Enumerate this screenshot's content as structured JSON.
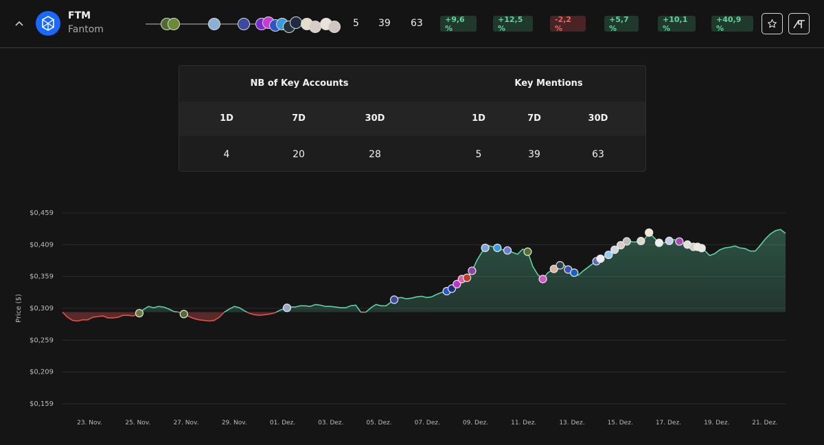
{
  "token": {
    "ticker": "FTM",
    "name": "Fantom",
    "logo_icon": "fantom-logo-icon",
    "logo_color": "#1969ff"
  },
  "header": {
    "collapse_icon": "chevron-up-icon",
    "mentions_1d": "5",
    "mentions_7d": "39",
    "mentions_30d": "63",
    "changes": [
      {
        "label": "+9,6 %",
        "type": "positive"
      },
      {
        "label": "+12,5 %",
        "type": "positive"
      },
      {
        "label": "-2,2 %",
        "type": "negative"
      },
      {
        "label": "+5,7 %",
        "type": "positive"
      },
      {
        "label": "+10,1 %",
        "type": "positive"
      },
      {
        "label": "+40,9 %",
        "type": "positive"
      }
    ],
    "favorite_icon": "star-icon",
    "brand_icon": "brand-logo-icon",
    "accent_green": "#62d59c",
    "accent_red": "#f0625e"
  },
  "stats": {
    "accounts_title": "NB of Key Accounts",
    "mentions_title": "Key Mentions",
    "periods": [
      "1D",
      "7D",
      "30D"
    ],
    "accounts_values": [
      "4",
      "20",
      "28"
    ],
    "mentions_values": [
      "5",
      "39",
      "63"
    ]
  },
  "chart_data": {
    "type": "line",
    "ylabel": "Price ($)",
    "yticks": [
      "$0,459",
      "$0,409",
      "$0,359",
      "$0,309",
      "$0,259",
      "$0,209",
      "$0,159"
    ],
    "ylim": [
      0.159,
      0.459
    ],
    "baseline": 0.303,
    "xticks": [
      "23. Nov.",
      "25. Nov.",
      "27. Nov.",
      "29. Nov.",
      "01. Dez.",
      "03. Dez.",
      "05. Dez.",
      "07. Dez.",
      "09. Dez.",
      "11. Dez.",
      "13. Dez.",
      "15. Dez.",
      "17. Dez.",
      "19. Dez.",
      "21. Dez."
    ],
    "x_start": "2023-11-22",
    "x_step_days": 0.25,
    "values": [
      0.303,
      0.295,
      0.29,
      0.289,
      0.291,
      0.291,
      0.295,
      0.296,
      0.297,
      0.294,
      0.294,
      0.295,
      0.298,
      0.298,
      0.297,
      0.3,
      0.307,
      0.312,
      0.31,
      0.312,
      0.311,
      0.308,
      0.304,
      0.303,
      0.3,
      0.296,
      0.293,
      0.291,
      0.29,
      0.289,
      0.29,
      0.295,
      0.303,
      0.308,
      0.312,
      0.31,
      0.305,
      0.301,
      0.299,
      0.298,
      0.299,
      0.3,
      0.302,
      0.306,
      0.309,
      0.311,
      0.311,
      0.313,
      0.313,
      0.312,
      0.315,
      0.314,
      0.312,
      0.312,
      0.311,
      0.31,
      0.31,
      0.313,
      0.314,
      0.303,
      0.303,
      0.31,
      0.315,
      0.313,
      0.313,
      0.319,
      0.325,
      0.326,
      0.324,
      0.325,
      0.327,
      0.328,
      0.326,
      0.327,
      0.331,
      0.334,
      0.336,
      0.34,
      0.347,
      0.355,
      0.357,
      0.368,
      0.385,
      0.398,
      0.408,
      0.406,
      0.404,
      0.401,
      0.4,
      0.397,
      0.394,
      0.402,
      0.398,
      0.375,
      0.362,
      0.355,
      0.365,
      0.37,
      0.375,
      0.379,
      0.37,
      0.366,
      0.361,
      0.368,
      0.374,
      0.38,
      0.385,
      0.39,
      0.393,
      0.4,
      0.405,
      0.413,
      0.415,
      0.413,
      0.414,
      0.416,
      0.428,
      0.42,
      0.412,
      0.412,
      0.415,
      0.417,
      0.414,
      0.411,
      0.408,
      0.405,
      0.406,
      0.4,
      0.392,
      0.395,
      0.401,
      0.404,
      0.405,
      0.407,
      0.404,
      0.403,
      0.399,
      0.399,
      0.408,
      0.418,
      0.426,
      0.431,
      0.433,
      0.427
    ],
    "colors": {
      "up_line": "#5fd3a8",
      "down_line": "#e0534e",
      "grid": "#2c2c2c"
    },
    "markers": [
      {
        "day": 3.8,
        "color": "#6d7a3a"
      },
      {
        "day": 6.0,
        "color": "#556b2f"
      },
      {
        "day": 11.1,
        "color": "#9aa7c9"
      },
      {
        "day": 16.4,
        "color": "#3b4a9e"
      },
      {
        "day": 19.0,
        "color": "#2d56c9"
      },
      {
        "day": 19.25,
        "color": "#1c2c8c"
      },
      {
        "day": 19.5,
        "color": "#c12fd0"
      },
      {
        "day": 19.75,
        "color": "#e25d9f"
      },
      {
        "day": 20.0,
        "color": "#c0392b"
      },
      {
        "day": 20.25,
        "color": "#8e44ad"
      },
      {
        "day": 20.9,
        "color": "#7fa3d9"
      },
      {
        "day": 21.5,
        "color": "#3a9bdc"
      },
      {
        "day": 22.0,
        "color": "#6a7bd1"
      },
      {
        "day": 23.0,
        "color": "#5a6e2a"
      },
      {
        "day": 23.75,
        "color": "#d05ac0"
      },
      {
        "day": 24.3,
        "color": "#dcb3a0"
      },
      {
        "day": 24.6,
        "color": "#2c3e50"
      },
      {
        "day": 25.0,
        "color": "#3f51b5"
      },
      {
        "day": 25.3,
        "color": "#1565c0"
      },
      {
        "day": 26.4,
        "color": "#5c6bc0"
      },
      {
        "day": 26.6,
        "color": "#eeeeee"
      },
      {
        "day": 27.0,
        "color": "#90caf9"
      },
      {
        "day": 27.3,
        "color": "#cfd8dc"
      },
      {
        "day": 27.6,
        "color": "#d7ccc8"
      },
      {
        "day": 27.9,
        "color": "#bdbdbd"
      },
      {
        "day": 28.6,
        "color": "#e0d6c8"
      },
      {
        "day": 29.0,
        "color": "#f3e5d0"
      },
      {
        "day": 29.5,
        "color": "#eeeeee"
      },
      {
        "day": 30.0,
        "color": "#c5cae9"
      },
      {
        "day": 30.5,
        "color": "#ab47bc"
      },
      {
        "day": 30.9,
        "color": "#e0e0e0"
      },
      {
        "day": 31.2,
        "color": "#d7ccc8"
      },
      {
        "day": 31.4,
        "color": "#f0e6dc"
      },
      {
        "day": 31.6,
        "color": "#e8e8e8"
      }
    ]
  }
}
